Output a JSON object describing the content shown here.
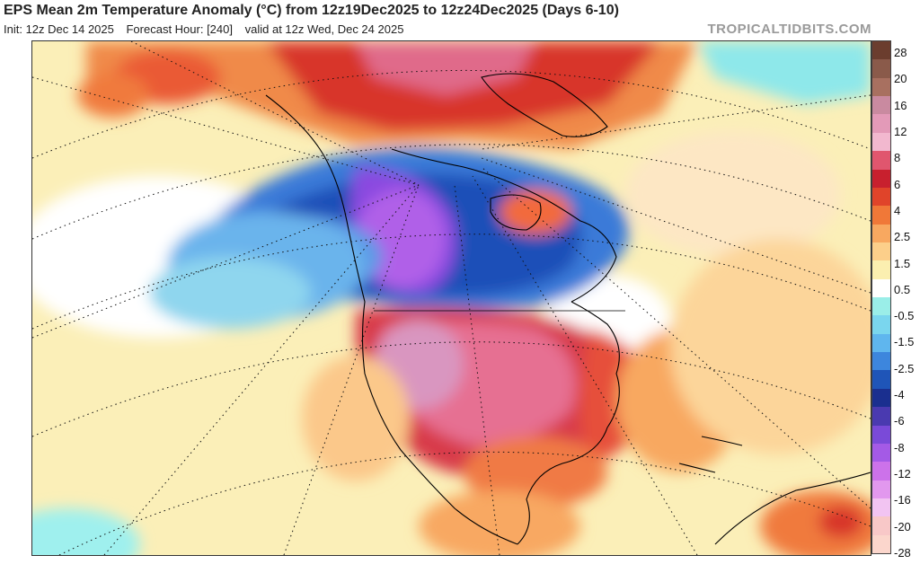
{
  "header": {
    "title": "EPS Mean 2m Temperature Anomaly (°C) from 12z19Dec2025 to 12z24Dec2025 (Days 6-10)",
    "init": "Init: 12z Dec 14 2025",
    "forecast_hour": "Forecast Hour: [240]",
    "valid": "valid at 12z Wed, Dec 24 2025",
    "source": "TROPICALTIDBITS.COM"
  },
  "map": {
    "variable": "2m temperature anomaly",
    "units": "°C",
    "region": "North America"
  },
  "legend": {
    "colors": [
      "#6b3d2e",
      "#8a5a4a",
      "#a87060",
      "#c98aa0",
      "#e39ab8",
      "#f2b8cf",
      "#e0566e",
      "#c8202e",
      "#e0442a",
      "#f07838",
      "#f8a860",
      "#fccf8a",
      "#fbefb0",
      "#ffffff",
      "#9aeee8",
      "#7ad6ee",
      "#5fb6ee",
      "#3d86dd",
      "#1f55b8",
      "#1a2f8f",
      "#4a3ab0",
      "#7a4ad8",
      "#a45ae6",
      "#cc72ea",
      "#e298ee",
      "#f2c4f2",
      "#f8c8c8",
      "#fbd6cc"
    ],
    "labels": [
      "28",
      "20",
      "16",
      "12",
      "8",
      "6",
      "4",
      "2.5",
      "1.5",
      "0.5",
      "-0.5",
      "-1.5",
      "-2.5",
      "-4",
      "-6",
      "-8",
      "-12",
      "-16",
      "-20",
      "-28"
    ]
  }
}
